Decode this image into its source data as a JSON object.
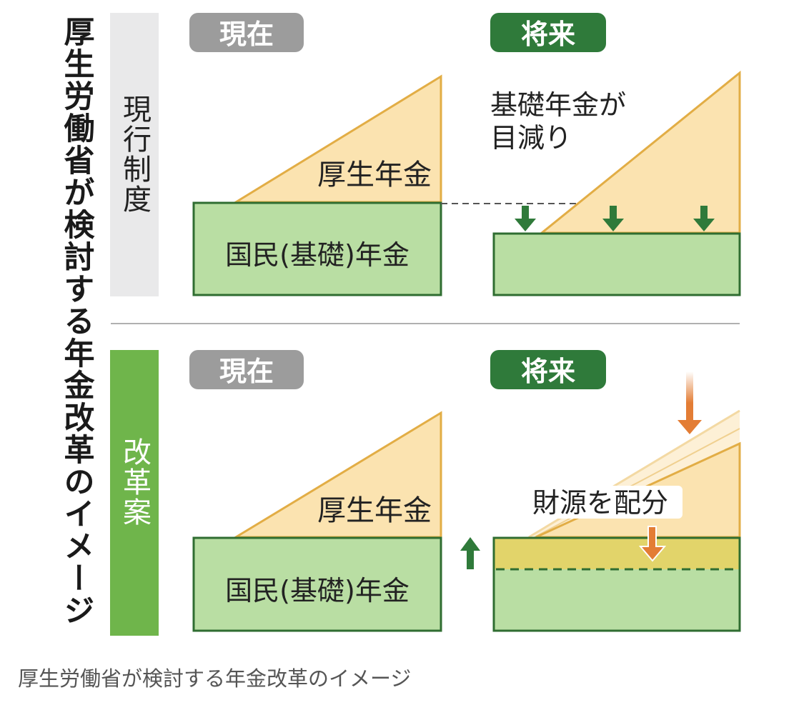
{
  "title": "厚生労働省が検討する年金改革のイメージ",
  "caption": "厚生労働省が検討する年金改革のイメージ",
  "colors": {
    "green_dark": "#2f7a3a",
    "green_fill": "#b9dea3",
    "green_label": "#6fb54b",
    "orange_fill": "#fbe3b0",
    "orange_stroke": "#e2ad45",
    "yellow_band": "#e2d46a",
    "arrow_orange": "#e37d35",
    "gray_pill": "#9c9c9c",
    "gray_bar": "#e9e9ea"
  },
  "current_system": {
    "row_label": "現行制度",
    "now": {
      "pill": "現在",
      "employee_pension": "厚生年金",
      "basic_pension": "国民(基礎)年金"
    },
    "future": {
      "pill": "将来",
      "note_line1": "基礎年金が",
      "note_line2": "目減り"
    }
  },
  "reform_plan": {
    "row_label": "改革案",
    "now": {
      "pill": "現在",
      "employee_pension": "厚生年金",
      "basic_pension": "国民(基礎)年金"
    },
    "future": {
      "pill": "将来",
      "note": "財源を配分"
    }
  }
}
